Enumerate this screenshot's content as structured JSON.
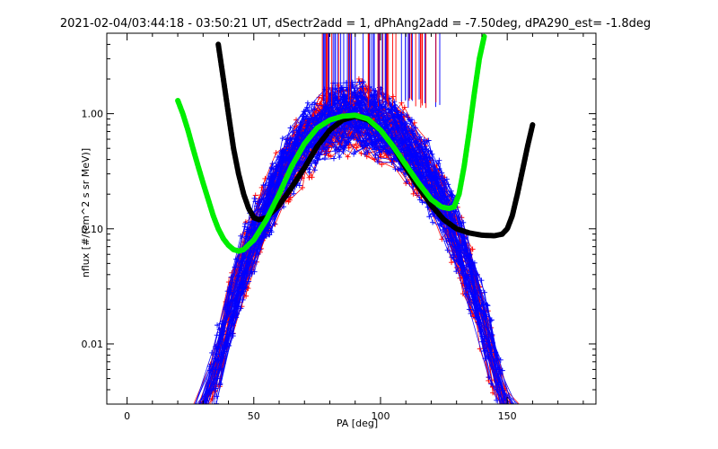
{
  "chart_data": {
    "type": "line",
    "title": "2021-02-04/03:44:18 - 03:50:21 UT, dSectr2add = 1, dPhAng2add = -7.50deg, dPA290_est=  -1.8deg",
    "xlabel": "PA [deg]",
    "ylabel": "nflux [#/(cm^2 s sr MeV)]",
    "xlim": [
      -8,
      185
    ],
    "ylim": [
      0.003,
      5.0
    ],
    "yscale": "log",
    "x_ticks": [
      0,
      50,
      100,
      150
    ],
    "x_tick_labels": [
      "0",
      "50",
      "100",
      "150"
    ],
    "y_ticks": [
      0.01,
      0.1,
      1.0
    ],
    "y_tick_labels": [
      "0.01",
      "0.10",
      "1.00"
    ],
    "colors": {
      "red_series": "#ff0000",
      "blue_series": "#0000ff",
      "fit_black": "#000000",
      "fit_green": "#00ee00",
      "axes": "#000000"
    },
    "series": [
      {
        "color": "#000000",
        "style": "thick-dashed",
        "x": [
          36,
          38,
          40,
          42,
          44,
          46,
          48,
          50,
          52,
          55,
          60,
          65,
          70,
          75,
          80,
          85,
          90,
          95,
          100,
          105,
          110,
          115,
          120,
          125,
          130,
          135,
          140,
          145,
          148,
          150,
          152,
          154,
          156,
          158,
          160
        ],
        "y": [
          4.0,
          2.0,
          1.0,
          0.5,
          0.3,
          0.2,
          0.15,
          0.125,
          0.12,
          0.125,
          0.16,
          0.23,
          0.34,
          0.52,
          0.72,
          0.88,
          0.95,
          0.88,
          0.72,
          0.52,
          0.34,
          0.23,
          0.16,
          0.12,
          0.1,
          0.092,
          0.088,
          0.087,
          0.09,
          0.1,
          0.13,
          0.2,
          0.32,
          0.52,
          0.8
        ]
      },
      {
        "color": "#00ee00",
        "style": "thick-dashed",
        "x": [
          20,
          22,
          24,
          26,
          28,
          30,
          32,
          34,
          36,
          38,
          40,
          42,
          44,
          46,
          50,
          55,
          60,
          65,
          70,
          75,
          80,
          85,
          90,
          95,
          100,
          105,
          110,
          115,
          120,
          124,
          127,
          129,
          131,
          133,
          135,
          137,
          139,
          141
        ],
        "y": [
          1.3,
          1.0,
          0.72,
          0.5,
          0.35,
          0.25,
          0.18,
          0.13,
          0.1,
          0.082,
          0.072,
          0.066,
          0.064,
          0.066,
          0.08,
          0.12,
          0.2,
          0.35,
          0.55,
          0.75,
          0.88,
          0.95,
          0.97,
          0.9,
          0.72,
          0.52,
          0.36,
          0.25,
          0.18,
          0.155,
          0.15,
          0.155,
          0.2,
          0.35,
          0.7,
          1.5,
          3.0,
          4.8
        ]
      }
    ]
  }
}
